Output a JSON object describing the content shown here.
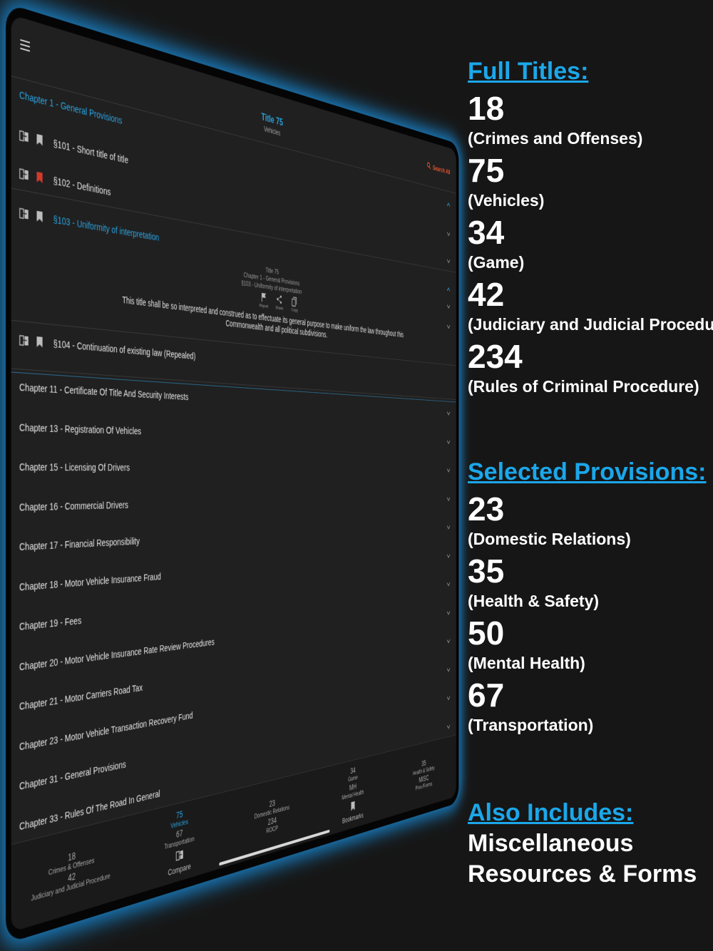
{
  "app": {
    "header": {
      "title": "Title 75",
      "subtitle": "Vehicles",
      "search": "Search All"
    },
    "open_chapter": {
      "label": "Chapter 1 - General Provisions",
      "sections": [
        {
          "label": "§101 - Short title of title",
          "bookmarked": false
        },
        {
          "label": "§102 - Definitions",
          "bookmarked": true
        },
        {
          "label": "§103 - Uniformity of interpretation",
          "bookmarked": false,
          "expanded": true
        },
        {
          "label": "§104 - Continuation of existing law (Repealed)",
          "bookmarked": false
        }
      ],
      "detail": {
        "lines": [
          "Title 75",
          "Chapter 1 - General Provisions",
          "§103 - Uniformity of interpretation"
        ],
        "actions": [
          "Report",
          "Share",
          "Copy"
        ],
        "text": "This title shall be so interpreted and construed as to effectuate its general purpose to make uniform the law throughout this Commonwealth and all political subdivisions."
      }
    },
    "chapters": [
      "Chapter 11 - Certificate Of Title And Security Interests",
      "Chapter 13 - Registration Of Vehicles",
      "Chapter 15 - Licensing Of Drivers",
      "Chapter 16 - Commercial Drivers",
      "Chapter 17 - Financial Responsibility",
      "Chapter 18 - Motor Vehicle Insurance Fraud",
      "Chapter 19 - Fees",
      "Chapter 20 - Motor Vehicle Insurance Rate Review Procedures",
      "Chapter 21 - Motor Carriers Road Tax",
      "Chapter 23 - Motor Vehicle Transaction Recovery Fund",
      "Chapter 31 - General Provisions",
      "Chapter 33 - Rules Of The Road In General"
    ],
    "tabs": [
      {
        "lines": [
          "18",
          "Crimes & Offenses",
          "42",
          "Judiciary and Judicial Procedure"
        ]
      },
      {
        "lines": [
          "75",
          "Vehicles",
          "67",
          "Transportation"
        ],
        "label": "Compare",
        "active": true
      },
      {
        "lines": [
          "23",
          "Domestic Relations",
          "234",
          "ROCP"
        ]
      },
      {
        "lines": [
          "34",
          "Game",
          "MH",
          "Mental Health"
        ],
        "label": "Bookmarks"
      },
      {
        "lines": [
          "35",
          "Health & Safety",
          "MISC",
          "Prov./Forms"
        ]
      }
    ]
  },
  "promo": {
    "sections": [
      {
        "heading": "Full Titles:",
        "items": [
          {
            "number": "18",
            "name": "(Crimes and Offenses)"
          },
          {
            "number": "75",
            "name": "(Vehicles)"
          },
          {
            "number": "34",
            "name": "(Game)"
          },
          {
            "number": "42",
            "name": "(Judiciary and Judicial Procedure)"
          },
          {
            "number": "234",
            "name": "(Rules of Criminal Procedure)"
          }
        ]
      },
      {
        "heading": "Selected Provisions:",
        "items": [
          {
            "number": "23",
            "name": "(Domestic Relations)"
          },
          {
            "number": "35",
            "name": "(Health & Safety)"
          },
          {
            "number": "50",
            "name": "(Mental Health)"
          },
          {
            "number": "67",
            "name": "(Transportation)"
          }
        ]
      },
      {
        "heading": "Also Includes:",
        "lines": [
          "Miscellaneous",
          "Resources & Forms"
        ]
      }
    ]
  }
}
